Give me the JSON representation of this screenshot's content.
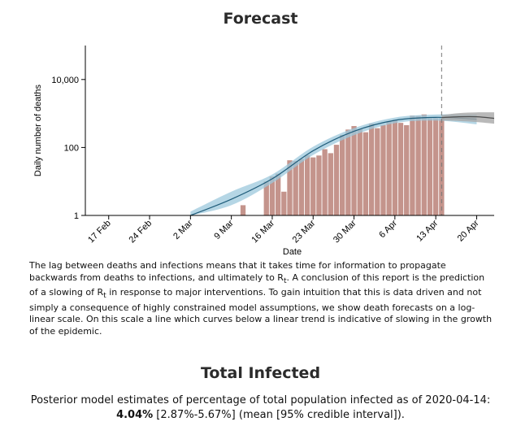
{
  "forecast_title": "Forecast",
  "caption": {
    "part1": "The lag between deaths and infections means that it takes time for information to propagate backwards from deaths to infections, and ultimately to R",
    "sub1": "t",
    "part2": ". A conclusion of this report is the prediction of a slowing of R",
    "sub2": "t",
    "part3": " in response to major interventions. To gain intuition that this is data driven and not simply a consequence of highly constrained model assumptions, we show death forecasts on a log-linear scale. On this scale a line which curves below a linear trend is indicative of slowing in the growth of the epidemic."
  },
  "total_infected_title": "Total Infected",
  "summary": {
    "line1": "Posterior model estimates of percentage of total population infected as of 2020-04-14:",
    "estimate": "4.04%",
    "interval": " [2.87%-5.67%] (mean [95% credible interval])."
  },
  "colors": {
    "bar": "#c4948c",
    "fit_line": "#1f5c7a",
    "fit_band": "#9cc8dc",
    "forecast_line": "#4d4d4d",
    "forecast_band": "#a8a8a8",
    "vline": "#777777"
  },
  "chart_data": {
    "type": "bar",
    "title": "",
    "xlabel": "Date",
    "ylabel": "Daily number of deaths",
    "yscale": "log",
    "ylim": [
      1,
      100000
    ],
    "y_ticks": [
      1,
      100,
      10000
    ],
    "y_tick_labels": [
      "1",
      "100",
      "10,000"
    ],
    "x_ticks": [
      0,
      7,
      14,
      21,
      28,
      35,
      42,
      49,
      56,
      63
    ],
    "x_tick_labels": [
      "17 Feb",
      "24 Feb",
      "2 Mar",
      "9 Mar",
      "16 Mar",
      "23 Mar",
      "30 Mar",
      "6 Apr",
      "13 Apr",
      "20 Apr"
    ],
    "xlim": [
      -4,
      66
    ],
    "x_origin_date": "17 Feb",
    "bars": {
      "x": [
        21,
        22,
        23,
        24,
        25,
        26,
        27,
        28,
        29,
        30,
        31,
        32,
        33,
        34,
        35,
        36,
        37,
        38,
        39,
        40,
        41,
        42,
        43,
        44,
        45,
        46,
        47,
        48,
        49,
        50,
        51,
        52,
        53,
        54,
        55,
        56,
        57
      ],
      "values": [
        1,
        1,
        2,
        1,
        1,
        1,
        10,
        14,
        17,
        5,
        42,
        40,
        46,
        60,
        51,
        58,
        89,
        68,
        120,
        233,
        337,
        427,
        346,
        280,
        504,
        369,
        458,
        603,
        648,
        530,
        453,
        866,
        848,
        939,
        719,
        728,
        730
      ]
    },
    "fit": {
      "x": [
        14,
        21,
        28,
        35,
        42,
        49,
        56,
        63
      ],
      "mean": [
        0.9,
        3,
        12,
        80,
        300,
        630,
        770,
        680
      ],
      "lower": [
        0.6,
        2,
        9,
        60,
        230,
        520,
        620,
        480
      ],
      "upper": [
        1.3,
        5,
        16,
        105,
        370,
        760,
        930,
        930
      ]
    },
    "forecast_start": 57,
    "forecast": {
      "x": [
        57,
        60,
        63,
        66
      ],
      "mean": [
        760,
        800,
        800,
        720
      ],
      "lower": [
        620,
        600,
        560,
        500
      ],
      "upper": [
        900,
        1030,
        1080,
        1080
      ]
    }
  }
}
